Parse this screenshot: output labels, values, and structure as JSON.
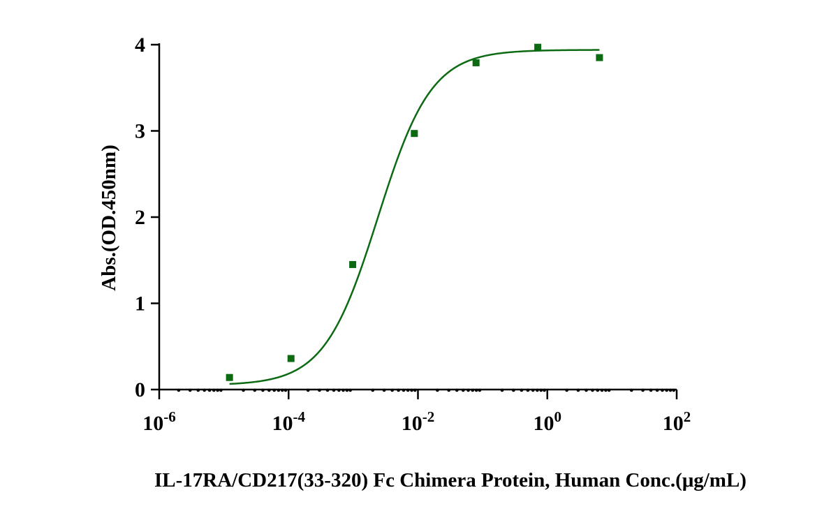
{
  "chart_data": {
    "type": "scatter",
    "xlabel": "IL-17RA/CD217(33-320) Fc Chimera Protein, Human  Conc.(μg/mL)",
    "ylabel": "Abs.(OD.450nm)",
    "x_scale": "log10",
    "xlim": [
      1e-06,
      100
    ],
    "ylim": [
      0,
      4
    ],
    "x_ticks": [
      {
        "base": "10",
        "exp": "-6"
      },
      {
        "base": "10",
        "exp": "-4"
      },
      {
        "base": "10",
        "exp": "-2"
      },
      {
        "base": "10",
        "exp": "0"
      },
      {
        "base": "10",
        "exp": "2"
      }
    ],
    "x_tick_values": [
      1e-06,
      0.0001,
      0.01,
      1,
      100
    ],
    "y_ticks": [
      "0",
      "1",
      "2",
      "3",
      "4"
    ],
    "y_tick_values": [
      0,
      1,
      2,
      3,
      4
    ],
    "grid": false,
    "series": [
      {
        "color": "#0b6a12",
        "x": [
          1.22e-05,
          0.000109,
          0.00098,
          0.00879,
          0.0791,
          0.712,
          6.4
        ],
        "y": [
          0.14,
          0.36,
          1.45,
          2.97,
          3.79,
          3.97,
          3.85
        ],
        "fit": {
          "model": "4PL",
          "bottom": 0.05,
          "top": 3.94,
          "ec50": 0.0024,
          "hill": 1.05
        }
      }
    ]
  }
}
